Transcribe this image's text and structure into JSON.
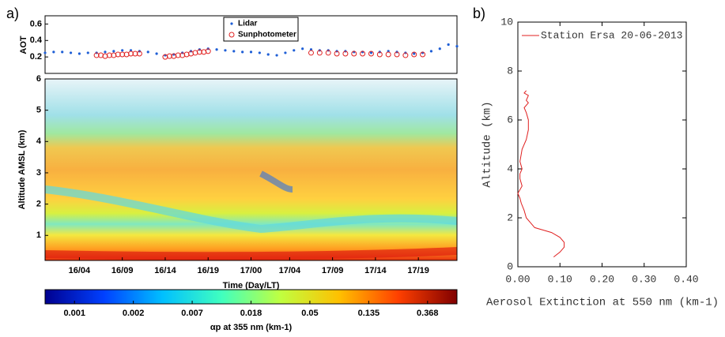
{
  "panels": [
    "a)",
    "b)"
  ],
  "chart_data": [
    {
      "type": "scatter",
      "ylabel": "AOT",
      "xlim": [
        0,
        48
      ],
      "ylim": [
        0,
        0.7
      ],
      "yticks": [
        0.2,
        0.4,
        0.6
      ],
      "legend": "top-center",
      "series": [
        {
          "name": "Lidar",
          "color": "#1f5fd6",
          "x": [
            0,
            1,
            2,
            3,
            4,
            5,
            6,
            7,
            8,
            9,
            10,
            11,
            12,
            13,
            14,
            15,
            16,
            17,
            18,
            19,
            20,
            21,
            22,
            23,
            24,
            25,
            26,
            27,
            28,
            29,
            30,
            31,
            32,
            33,
            34,
            35,
            36,
            37,
            38,
            39,
            40,
            41,
            42,
            43,
            44,
            45,
            46,
            47,
            48
          ],
          "values": [
            0.25,
            0.26,
            0.26,
            0.25,
            0.24,
            0.25,
            0.25,
            0.26,
            0.27,
            0.28,
            0.28,
            0.27,
            0.26,
            0.24,
            0.22,
            0.23,
            0.25,
            0.27,
            0.29,
            0.3,
            0.29,
            0.28,
            0.27,
            0.26,
            0.26,
            0.25,
            0.23,
            0.22,
            0.25,
            0.28,
            0.3,
            0.29,
            0.28,
            0.28,
            0.27,
            0.27,
            0.26,
            0.26,
            0.25,
            0.26,
            0.27,
            0.26,
            0.25,
            0.24,
            0.25,
            0.27,
            0.3,
            0.35,
            0.33
          ]
        },
        {
          "name": "Sunphotometer",
          "color": "#e02020",
          "x": [
            6,
            6.5,
            7,
            7.5,
            8,
            8.5,
            9,
            9.5,
            10,
            10.5,
            11,
            14,
            14.5,
            15,
            15.5,
            16,
            16.5,
            17,
            17.5,
            18,
            18.5,
            19,
            31,
            32,
            33,
            34,
            35,
            36,
            37,
            38,
            39,
            40,
            41,
            42,
            43,
            44
          ],
          "values": [
            0.22,
            0.22,
            0.21,
            0.22,
            0.22,
            0.23,
            0.23,
            0.23,
            0.24,
            0.24,
            0.24,
            0.2,
            0.21,
            0.21,
            0.22,
            0.22,
            0.23,
            0.24,
            0.25,
            0.26,
            0.26,
            0.27,
            0.25,
            0.25,
            0.25,
            0.24,
            0.24,
            0.24,
            0.24,
            0.24,
            0.23,
            0.23,
            0.23,
            0.22,
            0.23,
            0.23
          ]
        }
      ]
    },
    {
      "type": "heatmap",
      "xlabel": "Time (Day/LT)",
      "ylabel": "Altitude AMSL (km)",
      "xlim": [
        0,
        48
      ],
      "ylim": [
        0.2,
        6
      ],
      "xticks": [
        {
          "value": 4,
          "label": "16/04"
        },
        {
          "value": 9,
          "label": "16/09"
        },
        {
          "value": 14,
          "label": "16/14"
        },
        {
          "value": 19,
          "label": "16/19"
        },
        {
          "value": 24,
          "label": "17/00"
        },
        {
          "value": 28.5,
          "label": "17/04"
        },
        {
          "value": 33.5,
          "label": "17/09"
        },
        {
          "value": 38.5,
          "label": "17/14"
        },
        {
          "value": 43.5,
          "label": "17/19"
        }
      ],
      "yticks": [
        1,
        2,
        3,
        4,
        5,
        6
      ],
      "colorbar": {
        "label": "αp at 355 nm (km-1)",
        "ticks": [
          0.001,
          0.002,
          0.007,
          0.018,
          0.05,
          0.135,
          0.368
        ],
        "colors": [
          "#00008f",
          "#0040ff",
          "#00c0ff",
          "#40ffbf",
          "#c0ff40",
          "#ffc000",
          "#ff4000",
          "#800000"
        ]
      }
    },
    {
      "type": "line",
      "xlabel": "Aerosol Extinction at 550 nm (km-1)",
      "ylabel": "Altitude (km)",
      "xlim": [
        0,
        0.4
      ],
      "ylim": [
        0,
        10
      ],
      "xticks": [
        {
          "value": 0,
          "label": "0.00"
        },
        {
          "value": 0.1,
          "label": "0.10"
        },
        {
          "value": 0.2,
          "label": "0.20"
        },
        {
          "value": 0.3,
          "label": "0.30"
        },
        {
          "value": 0.4,
          "label": "0.40"
        }
      ],
      "yticks": [
        0,
        2,
        4,
        6,
        8,
        10
      ],
      "legend": "top-left",
      "series": [
        {
          "name": "Station Ersa 20-06-2013",
          "color": "#e02020",
          "x": [
            0.085,
            0.1,
            0.11,
            0.11,
            0.1,
            0.08,
            0.06,
            0.04,
            0.03,
            0.02,
            0.015,
            0.008,
            0.005,
            0.0,
            0.01,
            0.005,
            0.005,
            0.01,
            0.005,
            0.008,
            0.01,
            0.02,
            0.025,
            0.025,
            0.02,
            0.015,
            0.025,
            0.02,
            0.025,
            0.015,
            0.02
          ],
          "values": [
            0.4,
            0.6,
            0.8,
            1.0,
            1.2,
            1.4,
            1.5,
            1.6,
            1.8,
            2.0,
            2.3,
            2.6,
            2.8,
            3.0,
            3.3,
            3.6,
            3.8,
            4.0,
            4.3,
            4.6,
            4.8,
            5.2,
            5.6,
            6.0,
            6.3,
            6.5,
            6.7,
            6.8,
            7.0,
            7.1,
            7.2
          ]
        }
      ]
    }
  ]
}
